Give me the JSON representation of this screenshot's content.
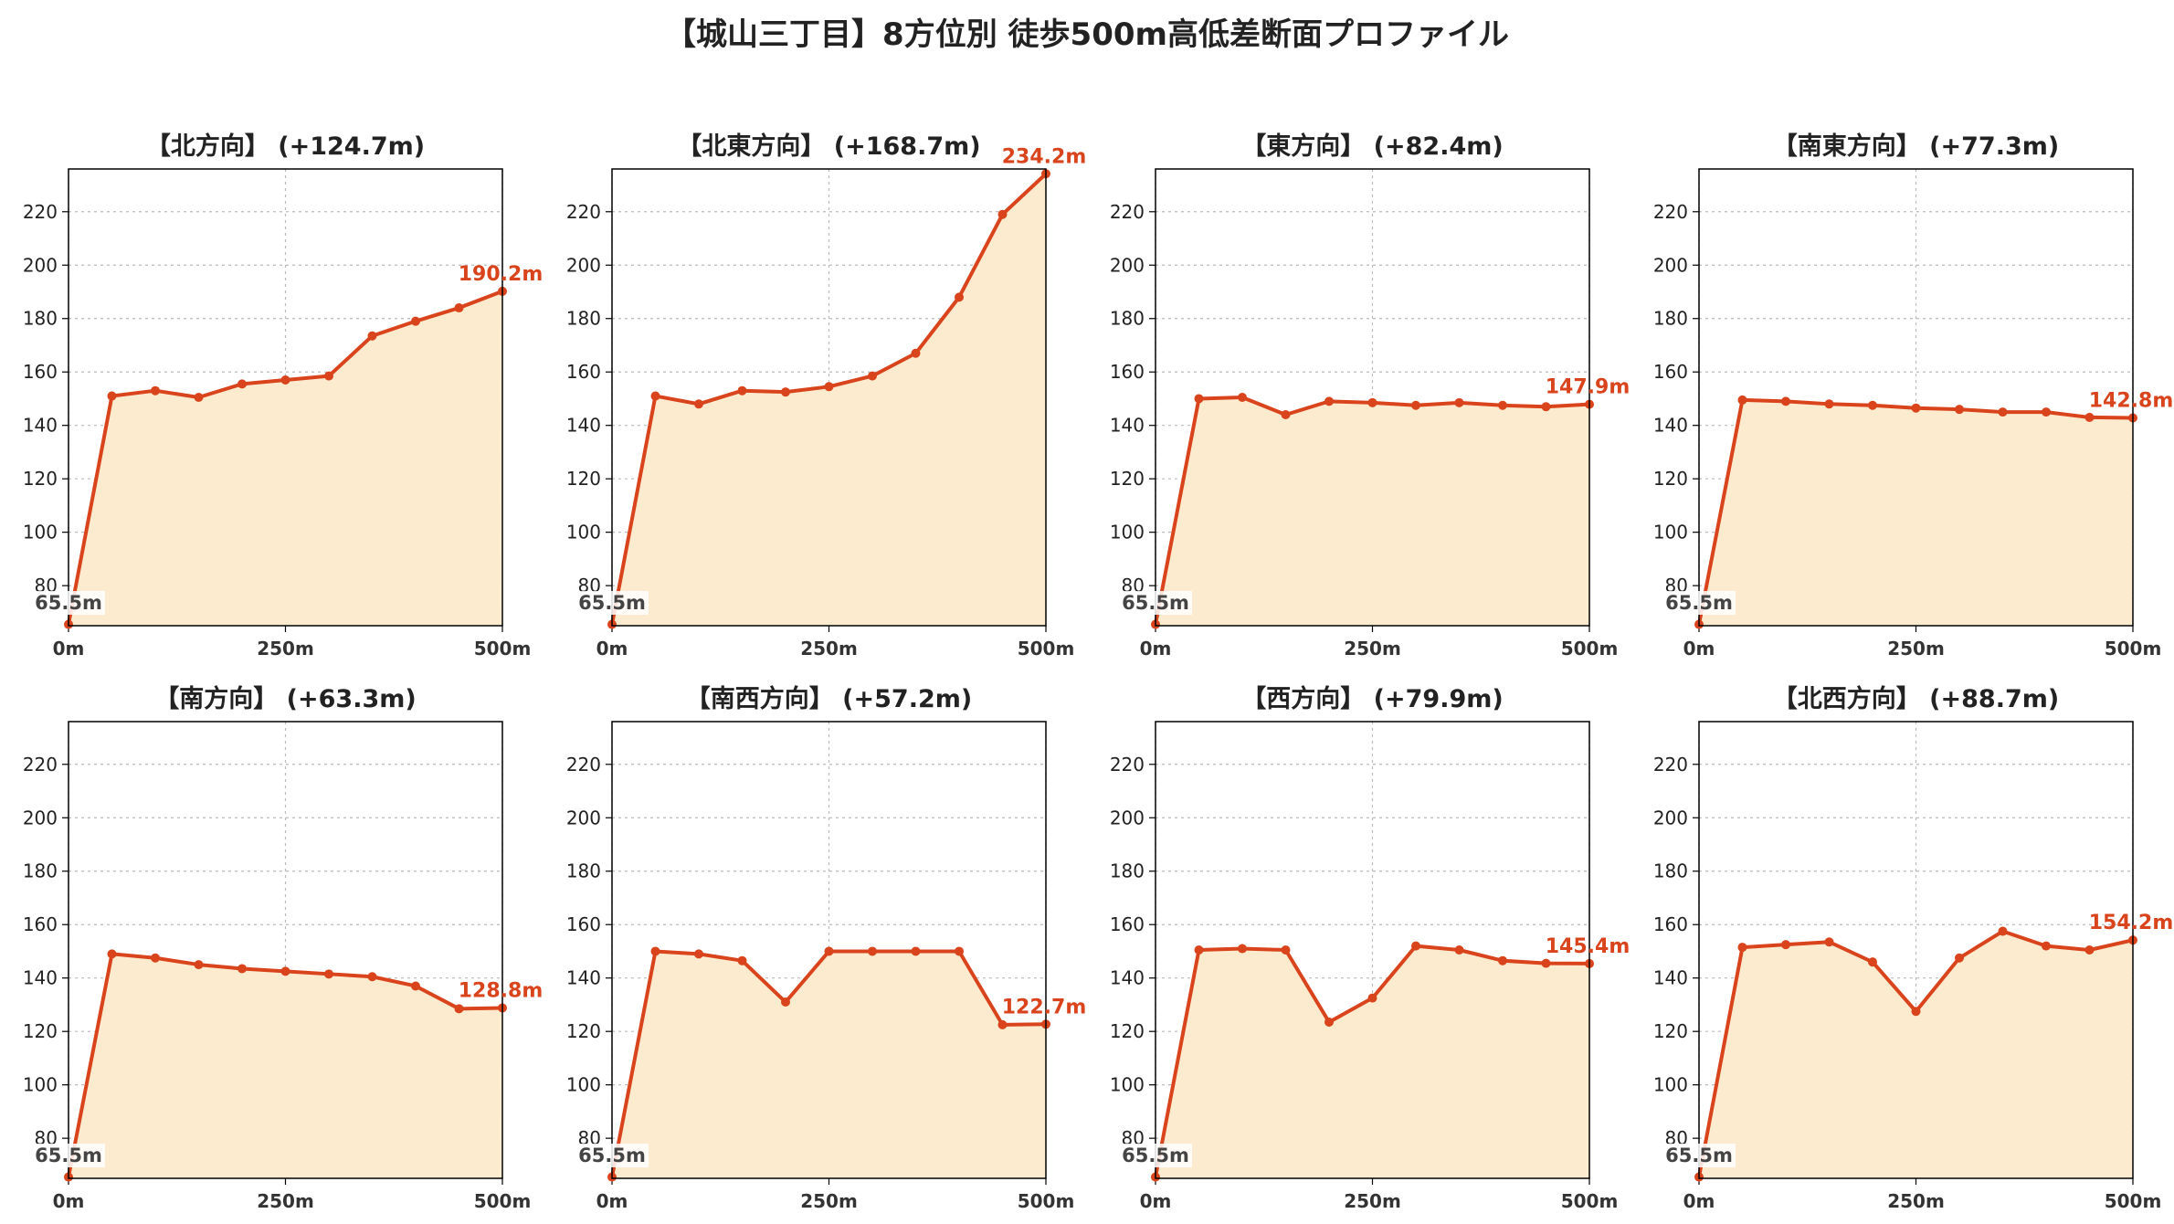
{
  "suptitle": "【城山三丁目】8方位別 徒歩500m高低差断面プロファイル",
  "colors": {
    "line": "#d9441c",
    "fill": "#fdebd0",
    "start_label": "#444444",
    "grid": "#bbbbbb"
  },
  "chart_data": [
    {
      "type": "area",
      "title": "【北方向】 (+124.7m)",
      "xticks": [
        "0m",
        "250m",
        "500m"
      ],
      "yticks": [
        80,
        100,
        120,
        140,
        160,
        180,
        200,
        220
      ],
      "xlim": [
        0,
        500
      ],
      "ylim": [
        65,
        236
      ],
      "grid": true,
      "x": [
        0,
        50,
        100,
        150,
        200,
        250,
        300,
        350,
        400,
        450,
        500
      ],
      "y": [
        65.5,
        151,
        153,
        150.5,
        155.5,
        157,
        158.5,
        173.5,
        179,
        184,
        190.2
      ],
      "start_label": "65.5m",
      "end_label": "190.2m"
    },
    {
      "type": "area",
      "title": "【北東方向】 (+168.7m)",
      "xticks": [
        "0m",
        "250m",
        "500m"
      ],
      "yticks": [
        80,
        100,
        120,
        140,
        160,
        180,
        200,
        220
      ],
      "xlim": [
        0,
        500
      ],
      "ylim": [
        65,
        236
      ],
      "grid": true,
      "x": [
        0,
        50,
        100,
        150,
        200,
        250,
        300,
        350,
        400,
        450,
        500
      ],
      "y": [
        65.5,
        151,
        148,
        153,
        152.5,
        154.5,
        158.5,
        167,
        188,
        219,
        234.2
      ],
      "start_label": "65.5m",
      "end_label": "234.2m"
    },
    {
      "type": "area",
      "title": "【東方向】 (+82.4m)",
      "xticks": [
        "0m",
        "250m",
        "500m"
      ],
      "yticks": [
        80,
        100,
        120,
        140,
        160,
        180,
        200,
        220
      ],
      "xlim": [
        0,
        500
      ],
      "ylim": [
        65,
        236
      ],
      "grid": true,
      "x": [
        0,
        50,
        100,
        150,
        200,
        250,
        300,
        350,
        400,
        450,
        500
      ],
      "y": [
        65.5,
        150,
        150.5,
        144,
        149,
        148.5,
        147.5,
        148.5,
        147.5,
        147,
        147.9
      ],
      "start_label": "65.5m",
      "end_label": "147.9m"
    },
    {
      "type": "area",
      "title": "【南東方向】 (+77.3m)",
      "xticks": [
        "0m",
        "250m",
        "500m"
      ],
      "yticks": [
        80,
        100,
        120,
        140,
        160,
        180,
        200,
        220
      ],
      "xlim": [
        0,
        500
      ],
      "ylim": [
        65,
        236
      ],
      "grid": true,
      "x": [
        0,
        50,
        100,
        150,
        200,
        250,
        300,
        350,
        400,
        450,
        500
      ],
      "y": [
        65.5,
        149.5,
        149,
        148,
        147.5,
        146.5,
        146,
        145,
        145,
        143,
        142.8
      ],
      "start_label": "65.5m",
      "end_label": "142.8m"
    },
    {
      "type": "area",
      "title": "【南方向】 (+63.3m)",
      "xticks": [
        "0m",
        "250m",
        "500m"
      ],
      "yticks": [
        80,
        100,
        120,
        140,
        160,
        180,
        200,
        220
      ],
      "xlim": [
        0,
        500
      ],
      "ylim": [
        65,
        236
      ],
      "grid": true,
      "x": [
        0,
        50,
        100,
        150,
        200,
        250,
        300,
        350,
        400,
        450,
        500
      ],
      "y": [
        65.5,
        149,
        147.5,
        145,
        143.5,
        142.5,
        141.5,
        140.5,
        137,
        128.5,
        128.8
      ],
      "start_label": "65.5m",
      "end_label": "128.8m"
    },
    {
      "type": "area",
      "title": "【南西方向】 (+57.2m)",
      "xticks": [
        "0m",
        "250m",
        "500m"
      ],
      "yticks": [
        80,
        100,
        120,
        140,
        160,
        180,
        200,
        220
      ],
      "xlim": [
        0,
        500
      ],
      "ylim": [
        65,
        236
      ],
      "grid": true,
      "x": [
        0,
        50,
        100,
        150,
        200,
        250,
        300,
        350,
        400,
        450,
        500
      ],
      "y": [
        65.5,
        150,
        149,
        146.5,
        131,
        150,
        150,
        150,
        150,
        122.5,
        122.7
      ],
      "start_label": "65.5m",
      "end_label": "122.7m"
    },
    {
      "type": "area",
      "title": "【西方向】 (+79.9m)",
      "xticks": [
        "0m",
        "250m",
        "500m"
      ],
      "yticks": [
        80,
        100,
        120,
        140,
        160,
        180,
        200,
        220
      ],
      "xlim": [
        0,
        500
      ],
      "ylim": [
        65,
        236
      ],
      "grid": true,
      "x": [
        0,
        50,
        100,
        150,
        200,
        250,
        300,
        350,
        400,
        450,
        500
      ],
      "y": [
        65.5,
        150.5,
        151,
        150.5,
        123.5,
        132.5,
        152,
        150.5,
        146.5,
        145.5,
        145.4
      ],
      "start_label": "65.5m",
      "end_label": "145.4m"
    },
    {
      "type": "area",
      "title": "【北西方向】 (+88.7m)",
      "xticks": [
        "0m",
        "250m",
        "500m"
      ],
      "yticks": [
        80,
        100,
        120,
        140,
        160,
        180,
        200,
        220
      ],
      "xlim": [
        0,
        500
      ],
      "ylim": [
        65,
        236
      ],
      "grid": true,
      "x": [
        0,
        50,
        100,
        150,
        200,
        250,
        300,
        350,
        400,
        450,
        500
      ],
      "y": [
        65.5,
        151.5,
        152.5,
        153.5,
        146,
        127.5,
        147.5,
        157.5,
        152,
        150.5,
        154.2
      ],
      "start_label": "65.5m",
      "end_label": "154.2m"
    }
  ]
}
